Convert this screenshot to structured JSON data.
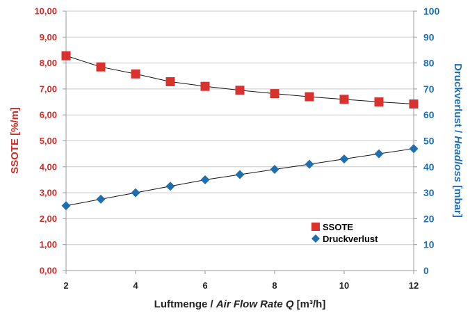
{
  "chart_data": {
    "type": "line",
    "x": [
      2,
      3,
      4,
      5,
      6,
      7,
      8,
      9,
      10,
      11,
      12
    ],
    "x_ticks": [
      "2",
      "4",
      "6",
      "8",
      "10",
      "12"
    ],
    "xlim": [
      2,
      12
    ],
    "xlabel_parts": [
      "Luftmenge / ",
      "Air Flow Rate Q",
      " [m³/h]"
    ],
    "ylabel_left_parts": [
      "SSOTE [%/m]"
    ],
    "ylabel_right_parts": [
      "Druckverlust / ",
      "Headloss",
      " [mbar]"
    ],
    "ylim_left": [
      0,
      10
    ],
    "ylim_right": [
      0,
      100
    ],
    "y_ticks_left": [
      "0,00",
      "1,00",
      "2,00",
      "3,00",
      "4,00",
      "5,00",
      "6,00",
      "7,00",
      "8,00",
      "9,00",
      "10,00"
    ],
    "y_ticks_right": [
      "0",
      "10",
      "20",
      "30",
      "40",
      "50",
      "60",
      "70",
      "80",
      "90",
      "100"
    ],
    "grid": "horizontal",
    "legend_position": "bottom-right",
    "series": [
      {
        "name": "SSOTE",
        "axis": "left",
        "marker": "square",
        "color": "#d9312d",
        "values": [
          8.28,
          7.85,
          7.58,
          7.28,
          7.1,
          6.95,
          6.82,
          6.7,
          6.6,
          6.5,
          6.42
        ]
      },
      {
        "name": "Druckverlust",
        "axis": "right",
        "marker": "diamond",
        "color": "#1f6fb0",
        "values": [
          25,
          27.5,
          30,
          32.5,
          35,
          37,
          39,
          41,
          43,
          45,
          47
        ]
      }
    ]
  }
}
